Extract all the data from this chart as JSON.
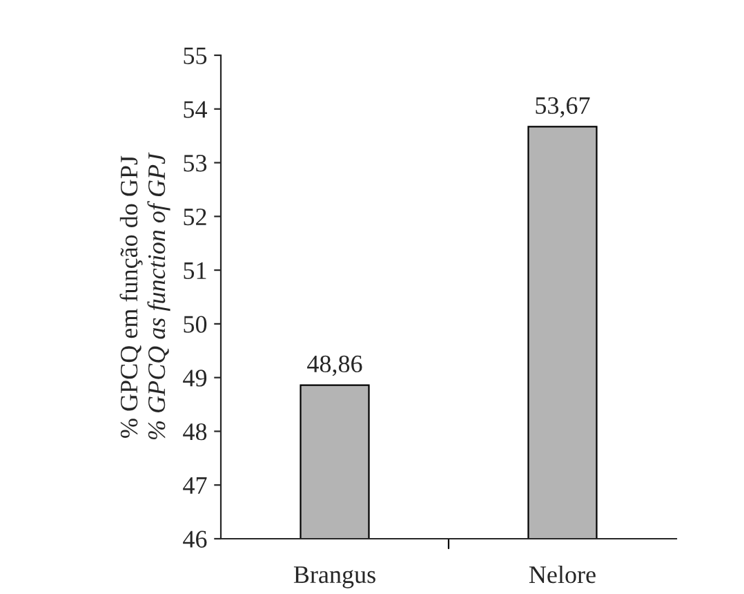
{
  "chart_data": {
    "type": "bar",
    "ylabel": "% GPCQ em função do GPJ\n% GPCQ as function of GPJ",
    "categories": [
      "Brangus",
      "Nelore"
    ],
    "values": [
      48.86,
      53.67
    ],
    "value_labels": [
      "48,86",
      "53,67"
    ],
    "color": "#b4b4b4",
    "ylim": [
      46,
      55
    ],
    "yticks": [
      46,
      47,
      48,
      49,
      50,
      51,
      52,
      53,
      54,
      55
    ],
    "grid": false,
    "legend": false
  }
}
